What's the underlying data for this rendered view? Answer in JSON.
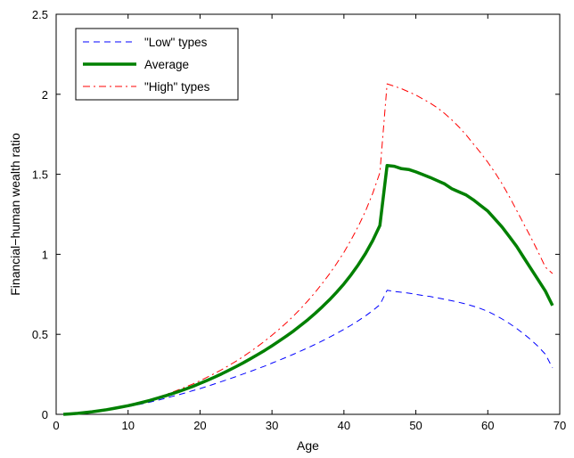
{
  "chart_data": {
    "type": "line",
    "title": "",
    "xlabel": "Age",
    "ylabel": "Financial−human wealth ratio",
    "xlim": [
      0,
      70
    ],
    "ylim": [
      0,
      2.5
    ],
    "xticks": [
      "0",
      "10",
      "20",
      "30",
      "40",
      "50",
      "60",
      "70"
    ],
    "yticks": [
      "0",
      "0.5",
      "1",
      "1.5",
      "2",
      "2.5"
    ],
    "grid": false,
    "legend": "top-left",
    "x": [
      1,
      2,
      3,
      4,
      5,
      6,
      7,
      8,
      9,
      10,
      11,
      12,
      13,
      14,
      15,
      16,
      17,
      18,
      19,
      20,
      21,
      22,
      23,
      24,
      25,
      26,
      27,
      28,
      29,
      30,
      31,
      32,
      33,
      34,
      35,
      36,
      37,
      38,
      39,
      40,
      41,
      42,
      43,
      44,
      45,
      46,
      47,
      48,
      49,
      50,
      51,
      52,
      53,
      54,
      55,
      56,
      57,
      58,
      59,
      60,
      61,
      62,
      63,
      64,
      65,
      66,
      67,
      68,
      69
    ],
    "series": [
      {
        "name": "\"Low\" types",
        "color": "#0000ff",
        "style": "dashed",
        "values": [
          0.0,
          0.003,
          0.006,
          0.01,
          0.015,
          0.02,
          0.026,
          0.033,
          0.04,
          0.048,
          0.057,
          0.066,
          0.076,
          0.087,
          0.098,
          0.11,
          0.122,
          0.135,
          0.148,
          0.161,
          0.175,
          0.19,
          0.205,
          0.22,
          0.236,
          0.252,
          0.268,
          0.285,
          0.302,
          0.32,
          0.338,
          0.357,
          0.376,
          0.396,
          0.416,
          0.437,
          0.459,
          0.482,
          0.506,
          0.531,
          0.557,
          0.585,
          0.615,
          0.648,
          0.685,
          0.775,
          0.768,
          0.763,
          0.757,
          0.75,
          0.743,
          0.736,
          0.728,
          0.719,
          0.71,
          0.7,
          0.689,
          0.676,
          0.661,
          0.643,
          0.621,
          0.596,
          0.568,
          0.537,
          0.503,
          0.466,
          0.424,
          0.375,
          0.29
        ]
      },
      {
        "name": "Average",
        "color": "#008000",
        "style": "solid",
        "values": [
          0.0,
          0.003,
          0.006,
          0.011,
          0.016,
          0.022,
          0.029,
          0.037,
          0.045,
          0.054,
          0.064,
          0.075,
          0.087,
          0.1,
          0.113,
          0.127,
          0.142,
          0.158,
          0.175,
          0.193,
          0.212,
          0.232,
          0.253,
          0.275,
          0.298,
          0.322,
          0.347,
          0.373,
          0.4,
          0.428,
          0.458,
          0.489,
          0.521,
          0.556,
          0.592,
          0.631,
          0.672,
          0.716,
          0.764,
          0.815,
          0.872,
          0.935,
          1.005,
          1.085,
          1.18,
          1.555,
          1.55,
          1.535,
          1.53,
          1.515,
          1.498,
          1.48,
          1.46,
          1.44,
          1.41,
          1.39,
          1.37,
          1.34,
          1.305,
          1.27,
          1.22,
          1.17,
          1.11,
          1.05,
          0.98,
          0.91,
          0.84,
          0.77,
          0.68
        ]
      },
      {
        "name": "\"High\" types",
        "color": "#ff0000",
        "style": "dashdot",
        "values": [
          0.0,
          0.003,
          0.006,
          0.011,
          0.016,
          0.022,
          0.029,
          0.037,
          0.046,
          0.056,
          0.066,
          0.078,
          0.091,
          0.105,
          0.12,
          0.136,
          0.153,
          0.171,
          0.19,
          0.21,
          0.232,
          0.255,
          0.279,
          0.305,
          0.332,
          0.361,
          0.392,
          0.424,
          0.458,
          0.494,
          0.532,
          0.572,
          0.615,
          0.661,
          0.71,
          0.762,
          0.818,
          0.878,
          0.943,
          1.013,
          1.09,
          1.175,
          1.27,
          1.38,
          1.51,
          2.065,
          2.05,
          2.035,
          2.015,
          1.995,
          1.97,
          1.945,
          1.915,
          1.88,
          1.84,
          1.795,
          1.745,
          1.69,
          1.635,
          1.575,
          1.51,
          1.44,
          1.36,
          1.275,
          1.19,
          1.105,
          1.015,
          0.92,
          0.88
        ]
      }
    ]
  }
}
